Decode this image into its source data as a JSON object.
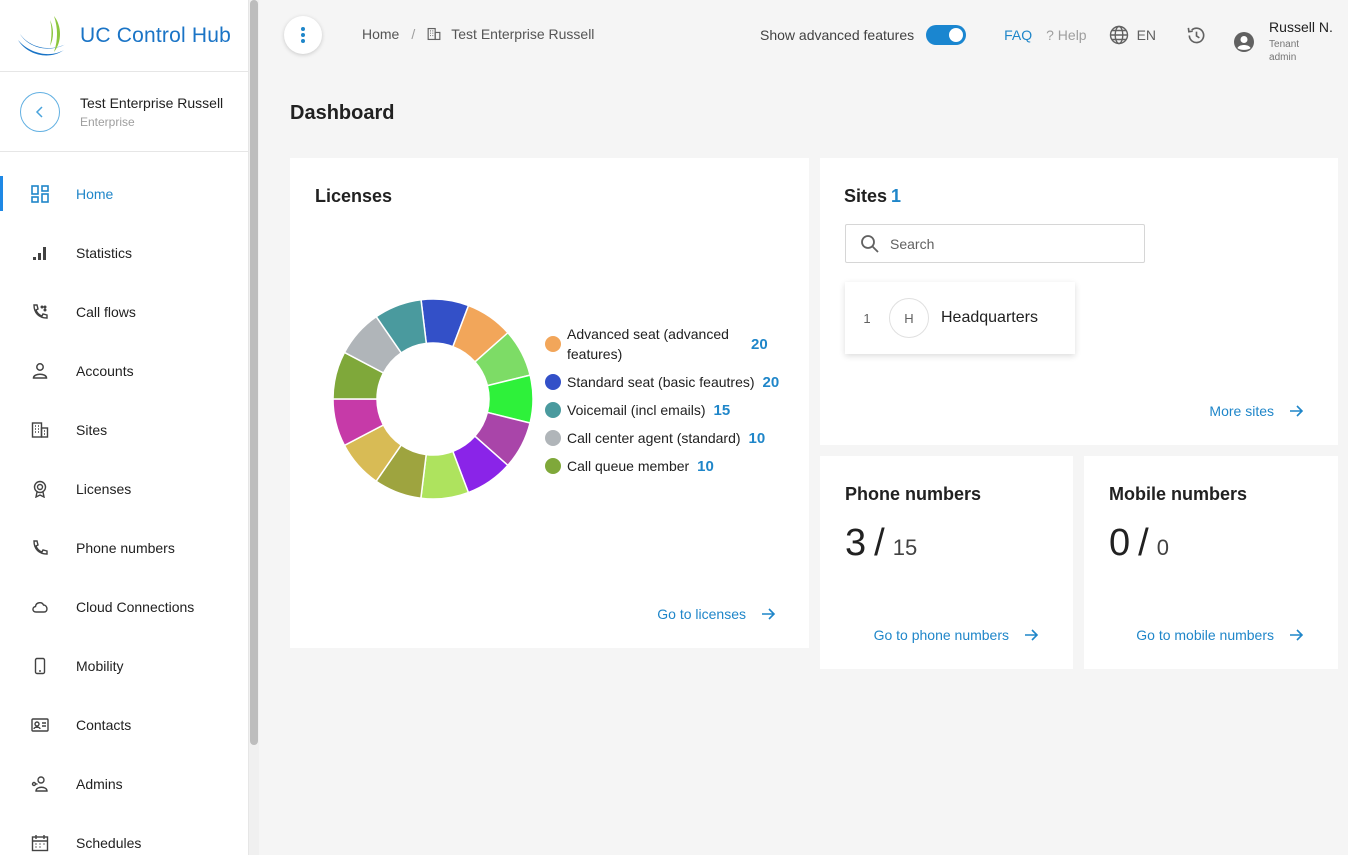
{
  "brand": {
    "title": "UC Control Hub"
  },
  "tenant": {
    "name": "Test Enterprise Russell",
    "type": "Enterprise"
  },
  "nav": [
    {
      "label": "Home",
      "icon": "dashboard-icon",
      "active": true
    },
    {
      "label": "Statistics",
      "icon": "bar-chart-icon"
    },
    {
      "label": "Call flows",
      "icon": "call-flow-icon"
    },
    {
      "label": "Accounts",
      "icon": "person-icon"
    },
    {
      "label": "Sites",
      "icon": "building-icon"
    },
    {
      "label": "Licenses",
      "icon": "award-icon"
    },
    {
      "label": "Phone numbers",
      "icon": "phone-icon"
    },
    {
      "label": "Cloud Connections",
      "icon": "cloud-icon"
    },
    {
      "label": "Mobility",
      "icon": "mobile-icon"
    },
    {
      "label": "Contacts",
      "icon": "contact-card-icon"
    },
    {
      "label": "Admins",
      "icon": "admin-icon"
    },
    {
      "label": "Schedules",
      "icon": "calendar-icon"
    }
  ],
  "breadcrumb": {
    "home": "Home",
    "separator": "/",
    "current": "Test Enterprise Russell"
  },
  "header": {
    "advanced_label": "Show advanced features",
    "advanced_on": true,
    "faq": "FAQ",
    "help": "? Help",
    "language": "EN",
    "user_name": "Russell N.",
    "user_role": "Tenant admin"
  },
  "page_title": "Dashboard",
  "licenses": {
    "title": "Licenses",
    "link": "Go to licenses",
    "legend": [
      {
        "label": "Advanced seat (advanced features)",
        "count": "20",
        "color": "#f2a65a"
      },
      {
        "label": "Standard seat (basic feautres)",
        "count": "20",
        "color": "#3350c8"
      },
      {
        "label": "Voicemail (incl emails)",
        "count": "15",
        "color": "#4a9a9e"
      },
      {
        "label": "Call center agent (standard)",
        "count": "10",
        "color": "#b0b5b9"
      },
      {
        "label": "Call queue member",
        "count": "10",
        "color": "#7fa83a"
      }
    ]
  },
  "chart_data": {
    "type": "pie",
    "variant": "donut",
    "legend_placement": "right",
    "slice_colors": [
      "#3350c8",
      "#f2a65a",
      "#7ddc66",
      "#2ef13a",
      "#a945a9",
      "#8a24e8",
      "#aee35e",
      "#9ea43f",
      "#d8bb55",
      "#c63aa8",
      "#7fa83a",
      "#b0b5b9",
      "#4a9a9e"
    ]
  },
  "sites": {
    "title": "Sites",
    "count": "1",
    "search_placeholder": "Search",
    "items": [
      {
        "index": "1",
        "initial": "H",
        "name": "Headquarters"
      }
    ],
    "link": "More sites"
  },
  "phone_numbers": {
    "title": "Phone numbers",
    "used": "3",
    "separator": "/",
    "total": "15",
    "link": "Go to phone numbers"
  },
  "mobile_numbers": {
    "title": "Mobile numbers",
    "used": "0",
    "separator": "/",
    "total": "0",
    "link": "Go to mobile numbers"
  }
}
